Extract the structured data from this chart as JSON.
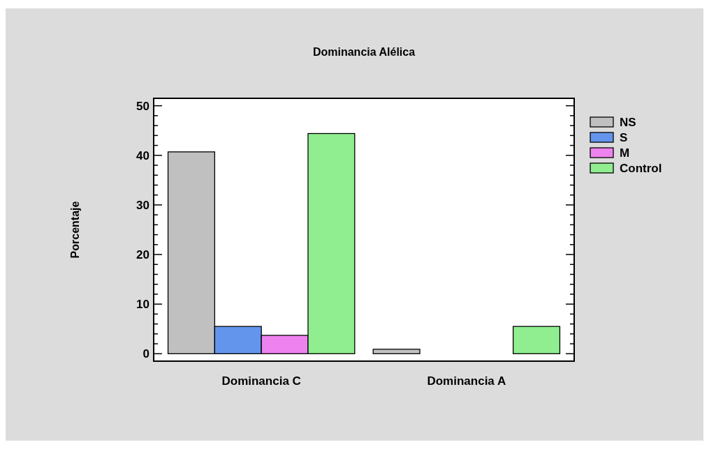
{
  "chart_data": {
    "type": "bar",
    "title": "Dominancia Alélica",
    "ylabel": "Porcentaje",
    "categories": [
      "Dominancia C",
      "Dominancia A"
    ],
    "series": [
      {
        "name": "NS",
        "color": "#c0c0c0",
        "values": [
          40.7,
          0.9
        ]
      },
      {
        "name": "S",
        "color": "#6495ed",
        "values": [
          5.5,
          0
        ]
      },
      {
        "name": "M",
        "color": "#ee82ee",
        "values": [
          3.7,
          0
        ]
      },
      {
        "name": "Control",
        "color": "#90ee90",
        "values": [
          44.4,
          5.5
        ]
      }
    ],
    "ylim": [
      -1.5,
      51.5
    ],
    "yticks": [
      0,
      {
        "value": 2,
        "label": null
      },
      {
        "value": 4,
        "label": null
      },
      {
        "value": 6,
        "label": null
      },
      {
        "value": 8,
        "label": null
      },
      10,
      {
        "value": 12,
        "label": null
      },
      {
        "value": 14,
        "label": null
      },
      {
        "value": 16,
        "label": null
      },
      {
        "value": 18,
        "label": null
      },
      20,
      {
        "value": 22,
        "label": null
      },
      {
        "value": 24,
        "label": null
      },
      {
        "value": 26,
        "label": null
      },
      {
        "value": 28,
        "label": null
      },
      30,
      {
        "value": 32,
        "label": null
      },
      {
        "value": 34,
        "label": null
      },
      {
        "value": 36,
        "label": null
      },
      {
        "value": 38,
        "label": null
      },
      40,
      {
        "value": 42,
        "label": null
      },
      {
        "value": 44,
        "label": null
      },
      {
        "value": 46,
        "label": null
      },
      {
        "value": 48,
        "label": null
      },
      50
    ],
    "legend": "right",
    "grid": false
  }
}
